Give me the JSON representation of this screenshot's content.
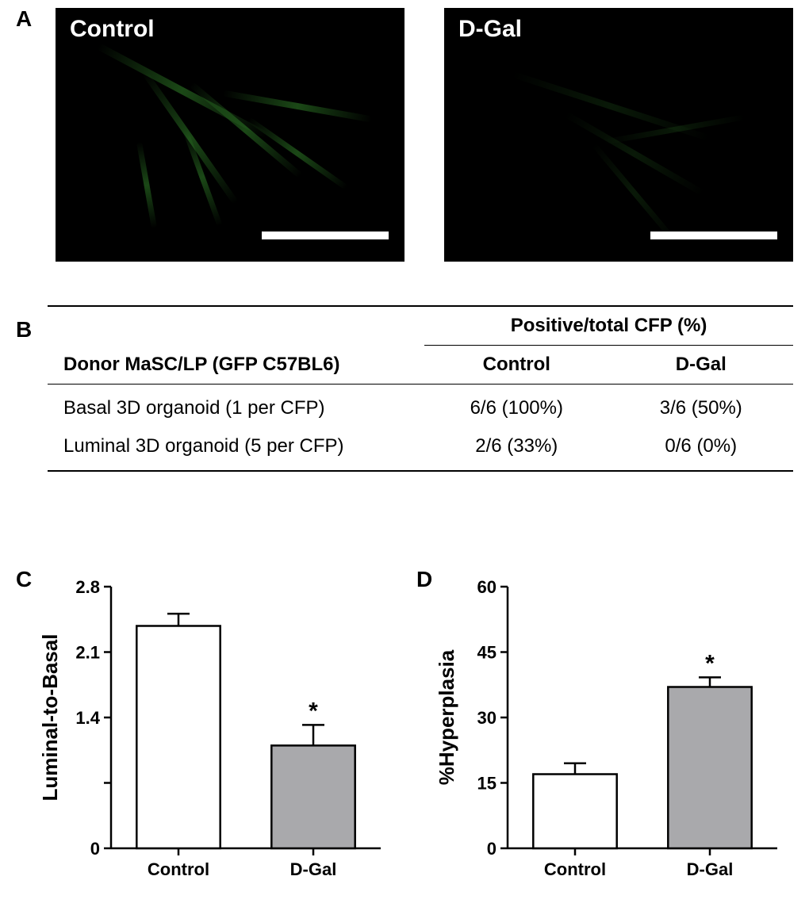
{
  "panelA": {
    "label": "A",
    "left": {
      "title": "Control"
    },
    "right": {
      "title": "D-Gal"
    }
  },
  "panelB": {
    "label": "B",
    "header_span": "Positive/total CFP (%)",
    "row_header": "Donor MaSC/LP (GFP C57BL6)",
    "col1": "Control",
    "col2": "D-Gal",
    "row1_label": "Basal 3D organoid (1 per CFP)",
    "row1_c": "6/6 (100%)",
    "row1_d": "3/6 (50%)",
    "row2_label": "Luminal 3D organoid (5 per CFP)",
    "row2_c": "2/6 (33%)",
    "row2_d": "0/6 (0%)"
  },
  "panelC": {
    "label": "C",
    "type": "bar",
    "ylabel": "Luminal-to-Basal",
    "categories": [
      "Control",
      "D-Gal"
    ],
    "values": [
      2.38,
      1.1
    ],
    "errors": [
      0.13,
      0.22
    ],
    "bar_colors": [
      "#ffffff",
      "#a9a9ac"
    ],
    "ylim": [
      0,
      2.8
    ],
    "yticks": [
      0,
      0.7,
      1.4,
      2.1,
      2.8
    ],
    "ytick_labels": [
      "0",
      "",
      "1.4",
      "2.1",
      "2.8"
    ],
    "sig_marker": "*",
    "sig_on_index": 1
  },
  "panelD": {
    "label": "D",
    "type": "bar",
    "ylabel": "%Hyperplasia",
    "categories": [
      "Control",
      "D-Gal"
    ],
    "values": [
      17,
      37
    ],
    "errors": [
      2.5,
      2.2
    ],
    "bar_colors": [
      "#ffffff",
      "#a9a9ac"
    ],
    "ylim": [
      0,
      60
    ],
    "yticks": [
      0,
      15,
      30,
      45,
      60
    ],
    "ytick_labels": [
      "0",
      "15",
      "30",
      "45",
      "60"
    ],
    "sig_marker": "*",
    "sig_on_index": 1
  },
  "style": {
    "bg": "#ffffff",
    "axis_color": "#000000",
    "bar_stroke": "#000000",
    "font": "Arial",
    "panel_label_fontsize": 28,
    "micrograph_label_fontsize": 30,
    "table_fontsize": 24,
    "tick_fontsize": 22,
    "ylabel_fontsize": 26
  }
}
